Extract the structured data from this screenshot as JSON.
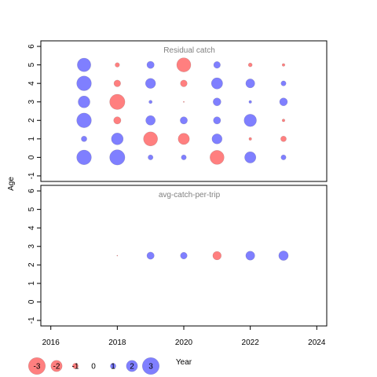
{
  "chart_data": {
    "type": "scatter",
    "subtype": "bubble-residual",
    "xlabel": "Year",
    "ylabel": "Age",
    "xlim": [
      2015.7,
      2024.3
    ],
    "x_ticks": [
      2016,
      2018,
      2020,
      2022,
      2024
    ],
    "colors": {
      "positive": "#0000ff",
      "negative": "#ff0000",
      "alpha": 0.5,
      "outline": "#555555"
    },
    "panels": [
      {
        "title": "Residual catch",
        "ylim": [
          -1.3,
          6.3
        ],
        "y_ticks": [
          -1,
          0,
          1,
          2,
          3,
          4,
          5,
          6
        ],
        "points": [
          {
            "year": 2017,
            "age": 5,
            "residual": 2.4
          },
          {
            "year": 2017,
            "age": 4,
            "residual": 2.6
          },
          {
            "year": 2017,
            "age": 3,
            "residual": 2.1
          },
          {
            "year": 2017,
            "age": 2,
            "residual": 2.6
          },
          {
            "year": 2017,
            "age": 1,
            "residual": 1.0
          },
          {
            "year": 2017,
            "age": 0,
            "residual": 2.6
          },
          {
            "year": 2018,
            "age": 5,
            "residual": -0.8
          },
          {
            "year": 2018,
            "age": 4,
            "residual": -1.2
          },
          {
            "year": 2018,
            "age": 3,
            "residual": -2.7
          },
          {
            "year": 2018,
            "age": 2,
            "residual": -1.3
          },
          {
            "year": 2018,
            "age": 1,
            "residual": 2.1
          },
          {
            "year": 2018,
            "age": 0,
            "residual": 2.7
          },
          {
            "year": 2019,
            "age": 5,
            "residual": 1.3
          },
          {
            "year": 2019,
            "age": 4,
            "residual": 1.8
          },
          {
            "year": 2019,
            "age": 3,
            "residual": 0.6
          },
          {
            "year": 2019,
            "age": 2,
            "residual": 1.7
          },
          {
            "year": 2019,
            "age": 1,
            "residual": -2.5
          },
          {
            "year": 2019,
            "age": 0,
            "residual": 0.9
          },
          {
            "year": 2020,
            "age": 5,
            "residual": -2.5
          },
          {
            "year": 2020,
            "age": 4,
            "residual": -1.2
          },
          {
            "year": 2020,
            "age": 3,
            "residual": -0.2
          },
          {
            "year": 2020,
            "age": 2,
            "residual": 1.3
          },
          {
            "year": 2020,
            "age": 1,
            "residual": -2.0
          },
          {
            "year": 2020,
            "age": 0,
            "residual": 0.9
          },
          {
            "year": 2021,
            "age": 5,
            "residual": 1.2
          },
          {
            "year": 2021,
            "age": 4,
            "residual": 2.0
          },
          {
            "year": 2021,
            "age": 3,
            "residual": 1.4
          },
          {
            "year": 2021,
            "age": 2,
            "residual": 1.3
          },
          {
            "year": 2021,
            "age": 1,
            "residual": 1.8
          },
          {
            "year": 2021,
            "age": 0,
            "residual": -2.5
          },
          {
            "year": 2022,
            "age": 5,
            "residual": -0.7
          },
          {
            "year": 2022,
            "age": 4,
            "residual": 1.6
          },
          {
            "year": 2022,
            "age": 3,
            "residual": 0.5
          },
          {
            "year": 2022,
            "age": 2,
            "residual": 2.2
          },
          {
            "year": 2022,
            "age": 1,
            "residual": -0.5
          },
          {
            "year": 2022,
            "age": 0,
            "residual": 2.0
          },
          {
            "year": 2023,
            "age": 5,
            "residual": -0.5
          },
          {
            "year": 2023,
            "age": 4,
            "residual": 0.9
          },
          {
            "year": 2023,
            "age": 3,
            "residual": 1.4
          },
          {
            "year": 2023,
            "age": 2,
            "residual": -0.5
          },
          {
            "year": 2023,
            "age": 1,
            "residual": -1.0
          },
          {
            "year": 2023,
            "age": 0,
            "residual": 0.9
          }
        ]
      },
      {
        "title": "avg-catch-per-trip",
        "ylim": [
          -1.3,
          6.3
        ],
        "y_ticks": [
          -1,
          0,
          1,
          2,
          3,
          4,
          5,
          6
        ],
        "points": [
          {
            "year": 2018,
            "age": 2.5,
            "residual": -0.1
          },
          {
            "year": 2019,
            "age": 2.5,
            "residual": 1.3
          },
          {
            "year": 2020,
            "age": 2.5,
            "residual": 1.2
          },
          {
            "year": 2021,
            "age": 2.5,
            "residual": -1.5
          },
          {
            "year": 2022,
            "age": 2.5,
            "residual": 1.6
          },
          {
            "year": 2023,
            "age": 2.5,
            "residual": 1.7
          }
        ]
      }
    ],
    "legend": {
      "placement": "bottom-left",
      "entries": [
        {
          "value": -3,
          "label": "-3"
        },
        {
          "value": -2,
          "label": "-2"
        },
        {
          "value": -1,
          "label": "-1"
        },
        {
          "value": 0,
          "label": "0"
        },
        {
          "value": 1,
          "label": "1"
        },
        {
          "value": 2,
          "label": "2"
        },
        {
          "value": 3,
          "label": "3"
        }
      ]
    }
  }
}
